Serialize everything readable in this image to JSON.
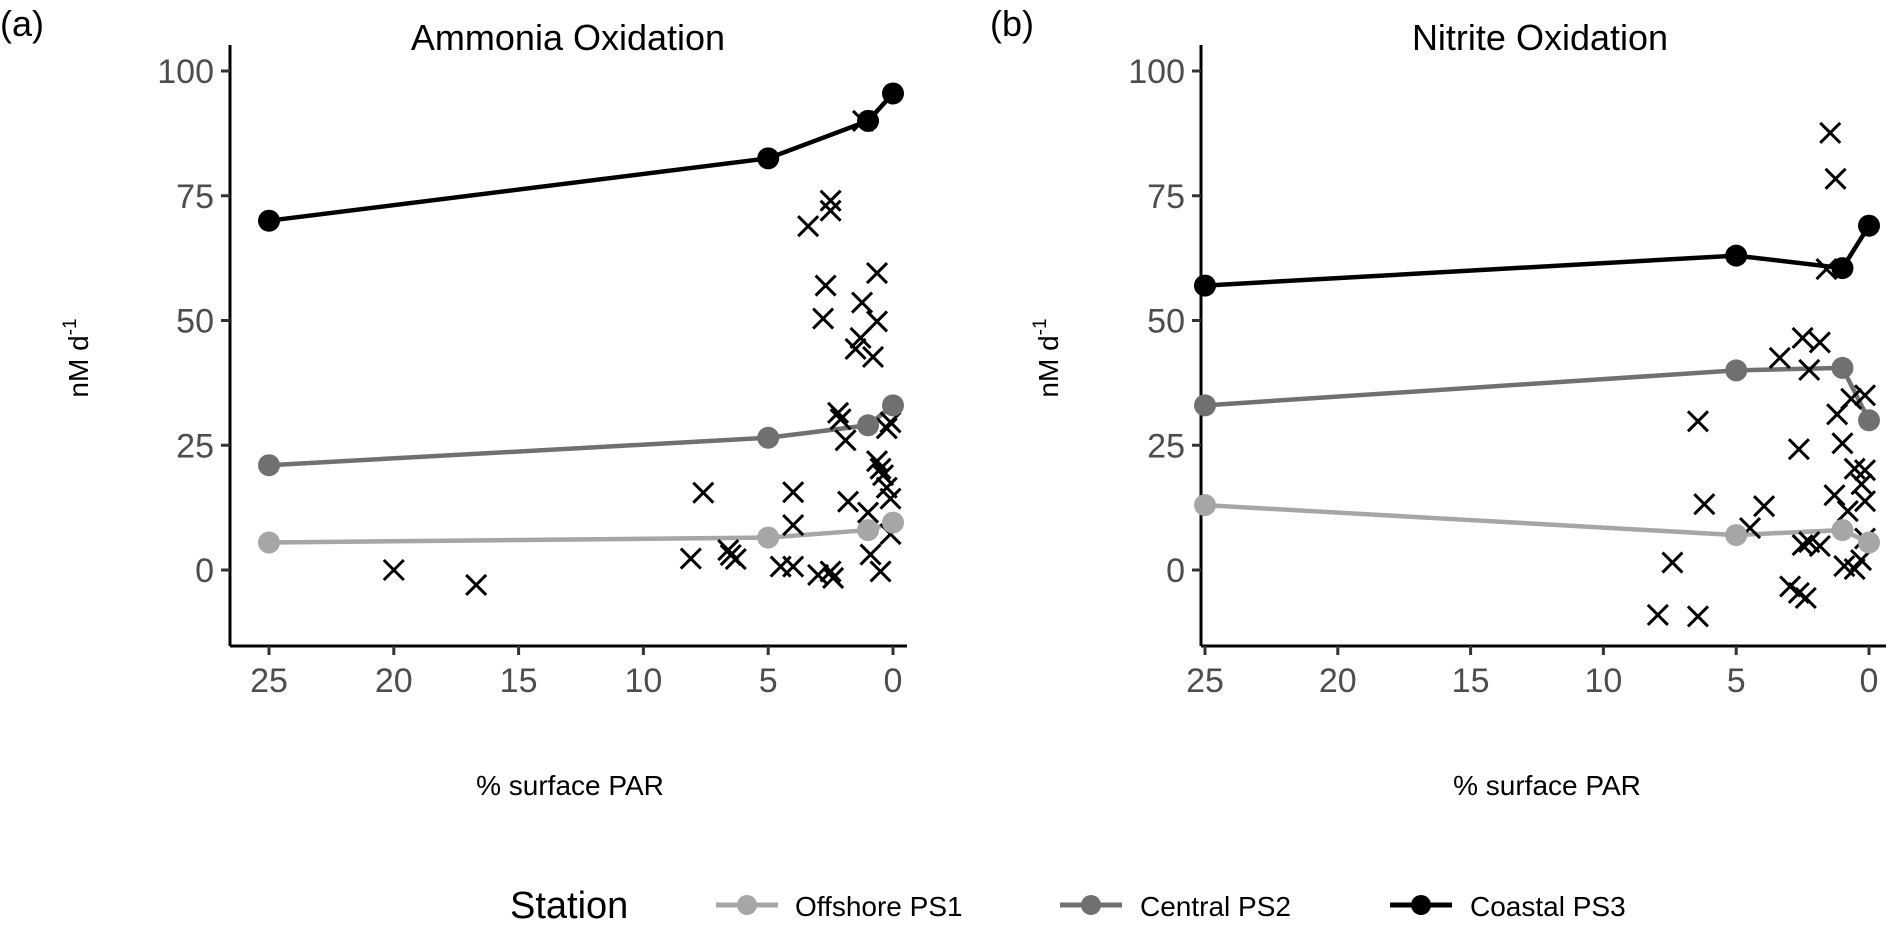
{
  "chart_data": [
    {
      "type": "line",
      "panel_label": "(a)",
      "title": "Ammonia Oxidation",
      "xlabel": "% surface PAR",
      "ylabel": "nM d",
      "ylabel_superscript": "-1",
      "x_reversed": true,
      "xlim": [
        26,
        -1
      ],
      "ylim": [
        -15,
        105
      ],
      "xticks": [
        "25",
        "20",
        "15",
        "10",
        "5",
        "0"
      ],
      "yticks": [
        "0",
        "25",
        "50",
        "75",
        "100"
      ],
      "grid": false,
      "series": [
        {
          "name": "Offshore PS1",
          "color": "#a6a6a6",
          "x": [
            25,
            5,
            1,
            0
          ],
          "y": [
            5.5,
            6.5,
            8,
            9.5
          ]
        },
        {
          "name": "Central PS2",
          "color": "#707070",
          "x": [
            25,
            5,
            1,
            0
          ],
          "y": [
            21,
            26.5,
            29,
            33
          ]
        },
        {
          "name": "Coastal PS3",
          "color": "#000000",
          "x": [
            25,
            5,
            1,
            0
          ],
          "y": [
            70,
            82.5,
            90,
            95.5
          ]
        }
      ],
      "crosses": [
        [
          20,
          0
        ],
        [
          16.7,
          -3
        ],
        [
          7.6,
          15.5
        ],
        [
          8.1,
          2.3
        ],
        [
          6.6,
          4
        ],
        [
          6.3,
          2.2
        ],
        [
          6.5,
          3
        ],
        [
          4.0,
          15.6
        ],
        [
          4.0,
          9
        ],
        [
          4.5,
          0.7
        ],
        [
          4.0,
          0.7
        ],
        [
          3.0,
          -1
        ],
        [
          2.5,
          -0.3
        ],
        [
          2.4,
          -1.6
        ],
        [
          2.5,
          74
        ],
        [
          2.5,
          72
        ],
        [
          3.4,
          68.9
        ],
        [
          2.7,
          57
        ],
        [
          0.64,
          59.5
        ],
        [
          1.24,
          53.6
        ],
        [
          2.8,
          50.4
        ],
        [
          0.64,
          49.8
        ],
        [
          1.3,
          46.5
        ],
        [
          1.5,
          44.3
        ],
        [
          0.8,
          42.7
        ],
        [
          2.2,
          31.5
        ],
        [
          2.1,
          30.2
        ],
        [
          1.9,
          26
        ],
        [
          0.1,
          29.6
        ],
        [
          0.25,
          28.4
        ],
        [
          0.64,
          21.8
        ],
        [
          0.5,
          20.3
        ],
        [
          0.4,
          19
        ],
        [
          0.25,
          16.5
        ],
        [
          1.8,
          13.7
        ],
        [
          1.0,
          11.5
        ],
        [
          0.1,
          14.3
        ],
        [
          0.1,
          7.2
        ],
        [
          0.9,
          3.1
        ],
        [
          0.5,
          -0.3
        ],
        [
          1.2,
          90
        ]
      ]
    },
    {
      "type": "line",
      "panel_label": "(b)",
      "title": "Nitrite Oxidation",
      "xlabel": "% surface PAR",
      "ylabel": "nM d",
      "ylabel_superscript": "-1",
      "x_reversed": true,
      "xlim": [
        26,
        -1
      ],
      "ylim": [
        -15,
        105
      ],
      "xticks": [
        "25",
        "20",
        "15",
        "10",
        "5",
        "0"
      ],
      "yticks": [
        "0",
        "25",
        "50",
        "75",
        "100"
      ],
      "grid": false,
      "series": [
        {
          "name": "Offshore PS1",
          "color": "#a6a6a6",
          "x": [
            25,
            5,
            1,
            0
          ],
          "y": [
            13,
            7,
            8,
            5.5
          ]
        },
        {
          "name": "Central PS2",
          "color": "#707070",
          "x": [
            25,
            5,
            1,
            0
          ],
          "y": [
            33,
            40,
            40.5,
            30
          ]
        },
        {
          "name": "Coastal PS3",
          "color": "#000000",
          "x": [
            25,
            5,
            1,
            0
          ],
          "y": [
            57,
            63,
            60.5,
            69
          ]
        }
      ],
      "crosses": [
        [
          1.46,
          87.6
        ],
        [
          1.26,
          78.4
        ],
        [
          1.6,
          60.3
        ],
        [
          2.5,
          46.5
        ],
        [
          1.85,
          45.6
        ],
        [
          3.36,
          42.5
        ],
        [
          2.25,
          40.1
        ],
        [
          0.15,
          35
        ],
        [
          1.2,
          31.2
        ],
        [
          0.67,
          34.3
        ],
        [
          6.44,
          29.8
        ],
        [
          1.0,
          25.4
        ],
        [
          2.64,
          24.2
        ],
        [
          0.54,
          20.3
        ],
        [
          0.15,
          20
        ],
        [
          0.28,
          17.2
        ],
        [
          0.15,
          13.8
        ],
        [
          6.2,
          13.2
        ],
        [
          3.95,
          12.8
        ],
        [
          0.8,
          11.8
        ],
        [
          4.48,
          8.4
        ],
        [
          2.5,
          5
        ],
        [
          1.85,
          4.8
        ],
        [
          2.25,
          5.6
        ],
        [
          0.93,
          0.8
        ],
        [
          0.54,
          0.2
        ],
        [
          7.4,
          1.5
        ],
        [
          2.97,
          -3.3
        ],
        [
          2.64,
          -4.6
        ],
        [
          2.38,
          -5.6
        ],
        [
          7.95,
          -9
        ],
        [
          6.44,
          -9.3
        ],
        [
          0.15,
          6.3
        ],
        [
          1.3,
          15
        ],
        [
          0.3,
          2
        ]
      ]
    }
  ],
  "legend": {
    "title": "Station",
    "position": "bottom",
    "items": [
      {
        "label": "Offshore PS1",
        "color": "#a6a6a6"
      },
      {
        "label": "Central PS2",
        "color": "#707070"
      },
      {
        "label": "Coastal PS3",
        "color": "#000000"
      }
    ]
  }
}
